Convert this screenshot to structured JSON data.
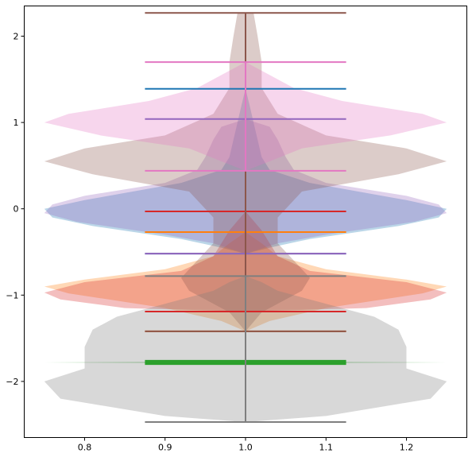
{
  "chart_data": {
    "type": "violin",
    "title": "",
    "xlabel": "",
    "ylabel": "",
    "xlim": [
      0.725,
      1.275
    ],
    "ylim": [
      -2.65,
      2.35
    ],
    "grid": false,
    "legend": "none",
    "x_ticks": [
      {
        "value": 0.8,
        "label": "0.8"
      },
      {
        "value": 0.9,
        "label": "0.9"
      },
      {
        "value": 1.0,
        "label": "1.0"
      },
      {
        "value": 1.1,
        "label": "1.1"
      },
      {
        "value": 1.2,
        "label": "1.2"
      }
    ],
    "y_ticks": [
      {
        "value": 2,
        "label": "2"
      },
      {
        "value": 1,
        "label": "1"
      },
      {
        "value": 0,
        "label": "0"
      },
      {
        "value": -1,
        "label": "−1"
      },
      {
        "value": -2,
        "label": "−2"
      }
    ],
    "position": 1.0,
    "violin_half_width": 0.25,
    "cap_half_width": 0.125,
    "series": [
      {
        "color": "#1f77b4",
        "min": -0.52,
        "max": 1.39,
        "profile": [
          [
            -0.52,
            0.0
          ],
          [
            -0.45,
            0.03
          ],
          [
            -0.35,
            0.08
          ],
          [
            -0.2,
            0.19
          ],
          [
            -0.1,
            0.24
          ],
          [
            0.0,
            0.25
          ],
          [
            0.1,
            0.2
          ],
          [
            0.3,
            0.08
          ],
          [
            0.45,
            0.03
          ],
          [
            0.6,
            0.02
          ],
          [
            0.8,
            0.015
          ],
          [
            1.0,
            0.01
          ],
          [
            1.2,
            0.005
          ],
          [
            1.39,
            0.0
          ]
        ]
      },
      {
        "color": "#ff7f0e",
        "min": -1.42,
        "max": -0.27,
        "profile": [
          [
            -1.42,
            0.0
          ],
          [
            -1.3,
            0.03
          ],
          [
            -1.15,
            0.1
          ],
          [
            -0.98,
            0.22
          ],
          [
            -0.9,
            0.25
          ],
          [
            -0.82,
            0.2
          ],
          [
            -0.7,
            0.1
          ],
          [
            -0.55,
            0.04
          ],
          [
            -0.4,
            0.02
          ],
          [
            -0.27,
            0.0
          ]
        ]
      },
      {
        "color": "#2ca02c",
        "min": -1.79,
        "max": -1.77,
        "profile": [
          [
            -1.795,
            0.0
          ],
          [
            -1.78,
            0.25
          ],
          [
            -1.765,
            0.0
          ]
        ]
      },
      {
        "color": "#d62728",
        "min": -1.19,
        "max": -0.03,
        "profile": [
          [
            -1.19,
            0.0
          ],
          [
            -1.15,
            0.15
          ],
          [
            -1.05,
            0.23
          ],
          [
            -0.97,
            0.25
          ],
          [
            -0.85,
            0.2
          ],
          [
            -0.72,
            0.08
          ],
          [
            -0.55,
            0.04
          ],
          [
            -0.4,
            0.03
          ],
          [
            -0.25,
            0.02
          ],
          [
            -0.03,
            0.0
          ]
        ]
      },
      {
        "color": "#9467bd",
        "min": -0.52,
        "max": 1.04,
        "profile": [
          [
            -0.52,
            0.0
          ],
          [
            -0.4,
            0.04
          ],
          [
            -0.3,
            0.1
          ],
          [
            -0.15,
            0.21
          ],
          [
            -0.05,
            0.25
          ],
          [
            0.05,
            0.24
          ],
          [
            0.15,
            0.2
          ],
          [
            0.3,
            0.1
          ],
          [
            0.45,
            0.06
          ],
          [
            0.6,
            0.05
          ],
          [
            0.8,
            0.04
          ],
          [
            0.95,
            0.03
          ],
          [
            1.04,
            0.0
          ]
        ]
      },
      {
        "color": "#8c564b",
        "min": -1.42,
        "max": 2.27,
        "profile": [
          [
            -1.42,
            0.0
          ],
          [
            -1.2,
            0.02
          ],
          [
            -0.95,
            0.07
          ],
          [
            -0.8,
            0.08
          ],
          [
            -0.6,
            0.06
          ],
          [
            -0.4,
            0.04
          ],
          [
            -0.1,
            0.04
          ],
          [
            0.2,
            0.07
          ],
          [
            0.4,
            0.19
          ],
          [
            0.55,
            0.25
          ],
          [
            0.7,
            0.2
          ],
          [
            0.85,
            0.1
          ],
          [
            1.1,
            0.04
          ],
          [
            1.4,
            0.02
          ],
          [
            1.7,
            0.02
          ],
          [
            2.0,
            0.015
          ],
          [
            2.27,
            0.01
          ]
        ]
      },
      {
        "color": "#e377c2",
        "min": 0.44,
        "max": 1.7,
        "profile": [
          [
            0.44,
            0.0
          ],
          [
            0.55,
            0.03
          ],
          [
            0.7,
            0.07
          ],
          [
            0.85,
            0.18
          ],
          [
            1.0,
            0.25
          ],
          [
            1.1,
            0.22
          ],
          [
            1.25,
            0.12
          ],
          [
            1.4,
            0.06
          ],
          [
            1.55,
            0.03
          ],
          [
            1.7,
            0.0
          ]
        ]
      },
      {
        "color": "#7f7f7f",
        "min": -2.47,
        "max": -0.78,
        "profile": [
          [
            -2.47,
            0.0
          ],
          [
            -2.4,
            0.1
          ],
          [
            -2.2,
            0.23
          ],
          [
            -2.0,
            0.25
          ],
          [
            -1.85,
            0.2
          ],
          [
            -1.6,
            0.2
          ],
          [
            -1.4,
            0.19
          ],
          [
            -1.25,
            0.16
          ],
          [
            -1.1,
            0.1
          ],
          [
            -0.95,
            0.04
          ],
          [
            -0.85,
            0.02
          ],
          [
            -0.78,
            0.0
          ]
        ]
      }
    ]
  }
}
